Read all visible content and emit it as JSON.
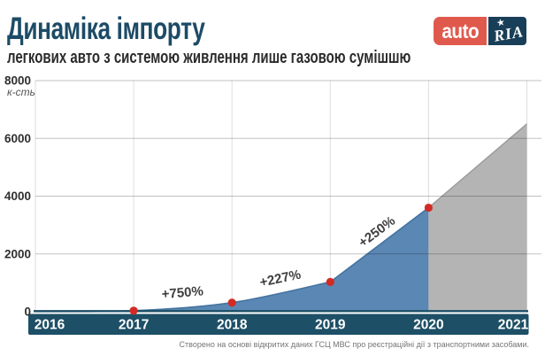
{
  "header": {
    "title": "Динаміка імпорту",
    "subtitle": "легкових авто з системою живлення лише газовою сумішшю"
  },
  "logo": {
    "auto_text": "auto",
    "ria_text": "RIA",
    "star": "★",
    "auto_bg": "#df5a4d",
    "ria_bg": "#193e57"
  },
  "footer": {
    "source": "Створено на основі відкритих даних ГСЦ МВС про реєстраційні дії з транспортними засобами."
  },
  "chart_data": {
    "type": "area",
    "title": "Динаміка імпорту",
    "subtitle": "легкових авто з системою живлення лише газовою сумішшю",
    "categories": [
      "2016",
      "2017",
      "2018",
      "2019",
      "2020",
      "2021"
    ],
    "values": [
      5,
      37,
      315,
      1030,
      3600,
      6500
    ],
    "marker_years": [
      "2017",
      "2018",
      "2019",
      "2020"
    ],
    "projection_years": [
      "2020",
      "2021"
    ],
    "annotations": [
      {
        "from": "2017",
        "to": "2018",
        "label": "+750%"
      },
      {
        "from": "2018",
        "to": "2019",
        "label": "+227%"
      },
      {
        "from": "2019",
        "to": "2020",
        "label": "+250%"
      }
    ],
    "ylabel": "к-сть",
    "yticks": [
      0,
      2000,
      4000,
      6000,
      8000
    ],
    "ylim": [
      0,
      8000
    ],
    "grid": true,
    "legend": "none",
    "colors": {
      "area_actual": "#5b87b4",
      "area_actual_edge": "#44739f",
      "area_projection": "#b4b4b4",
      "area_projection_edge": "#9b9b9b",
      "marker": "#d22b25",
      "axis_band": "#1d4f66",
      "grid_v": "#dedede",
      "tick_text": "#2f2f2f",
      "annotation_text": "#3e3e3e"
    }
  }
}
